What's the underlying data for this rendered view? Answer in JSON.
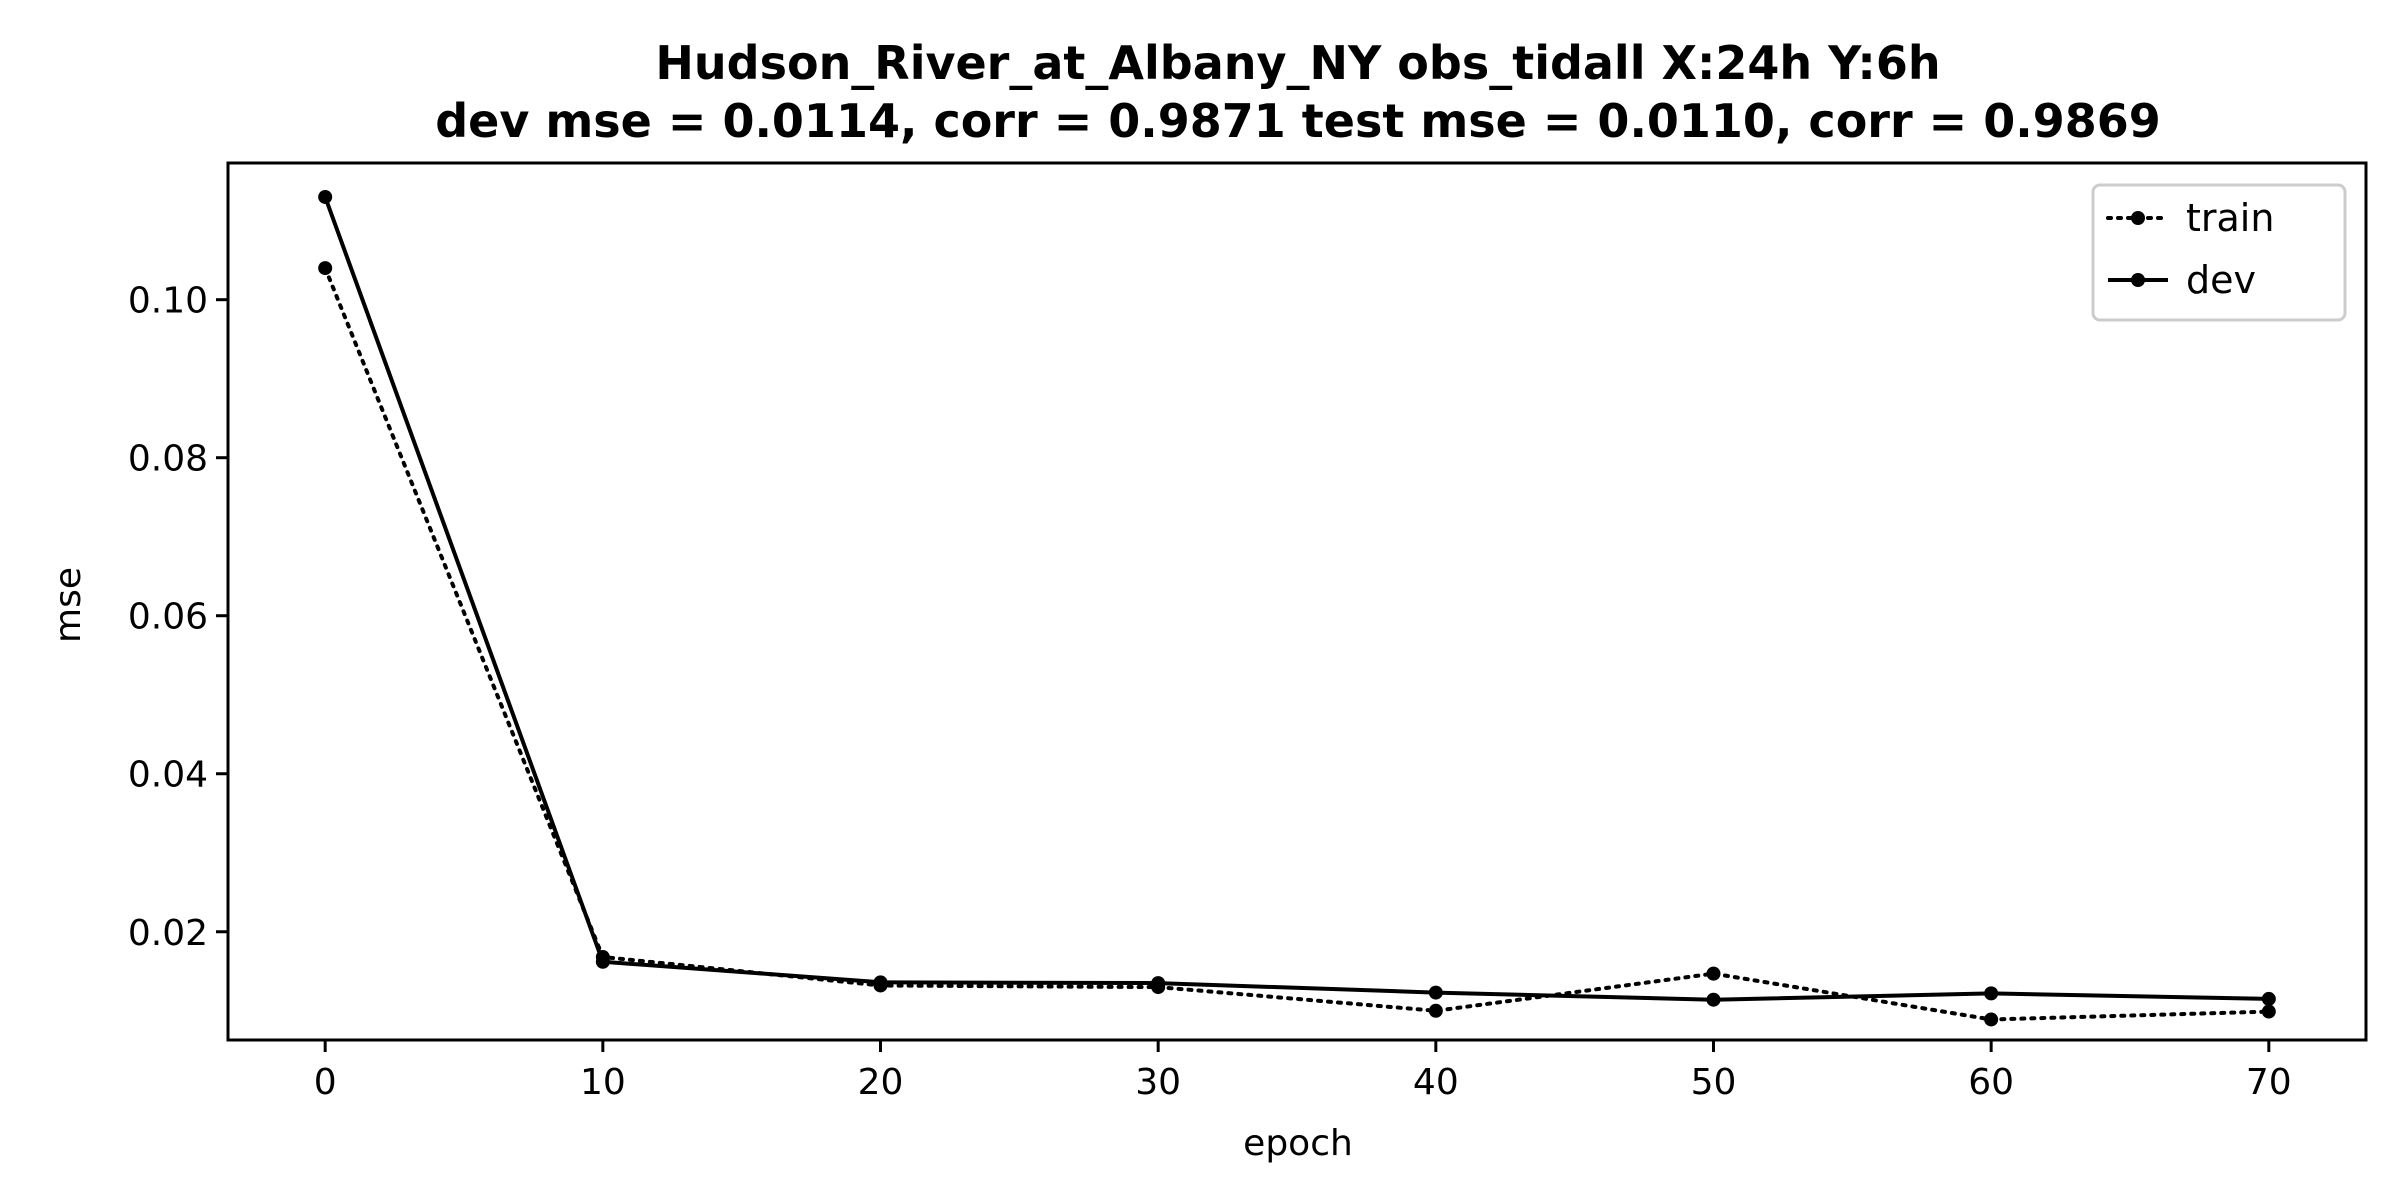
{
  "chart_data": {
    "type": "line",
    "title": "Hudson_River_at_Albany_NY   obs_tidall   X:24h   Y:6h",
    "subtitle": "dev mse = 0.0114, corr = 0.9871   test mse = 0.0110, corr = 0.9869",
    "xlabel": "epoch",
    "ylabel": "mse",
    "x": [
      0,
      10,
      20,
      30,
      40,
      50,
      60,
      70
    ],
    "xlim": [
      -3.5,
      73.5
    ],
    "ylim": [
      0.0063,
      0.1173
    ],
    "xticks": [
      0,
      10,
      20,
      30,
      40,
      50,
      60,
      70
    ],
    "yticks": [
      0.02,
      0.04,
      0.06,
      0.08,
      0.1
    ],
    "ytick_labels": [
      "0.02",
      "0.04",
      "0.06",
      "0.08",
      "0.10"
    ],
    "grid": false,
    "legend": "top-right",
    "series": [
      {
        "name": "train",
        "style": "dotted",
        "color": "#000000",
        "values": [
          0.104,
          0.0168,
          0.0132,
          0.013,
          0.01,
          0.0147,
          0.0089,
          0.0099
        ]
      },
      {
        "name": "dev",
        "style": "solid",
        "color": "#000000",
        "values": [
          0.113,
          0.0162,
          0.0136,
          0.0135,
          0.0123,
          0.0114,
          0.0122,
          0.0115
        ]
      }
    ]
  }
}
